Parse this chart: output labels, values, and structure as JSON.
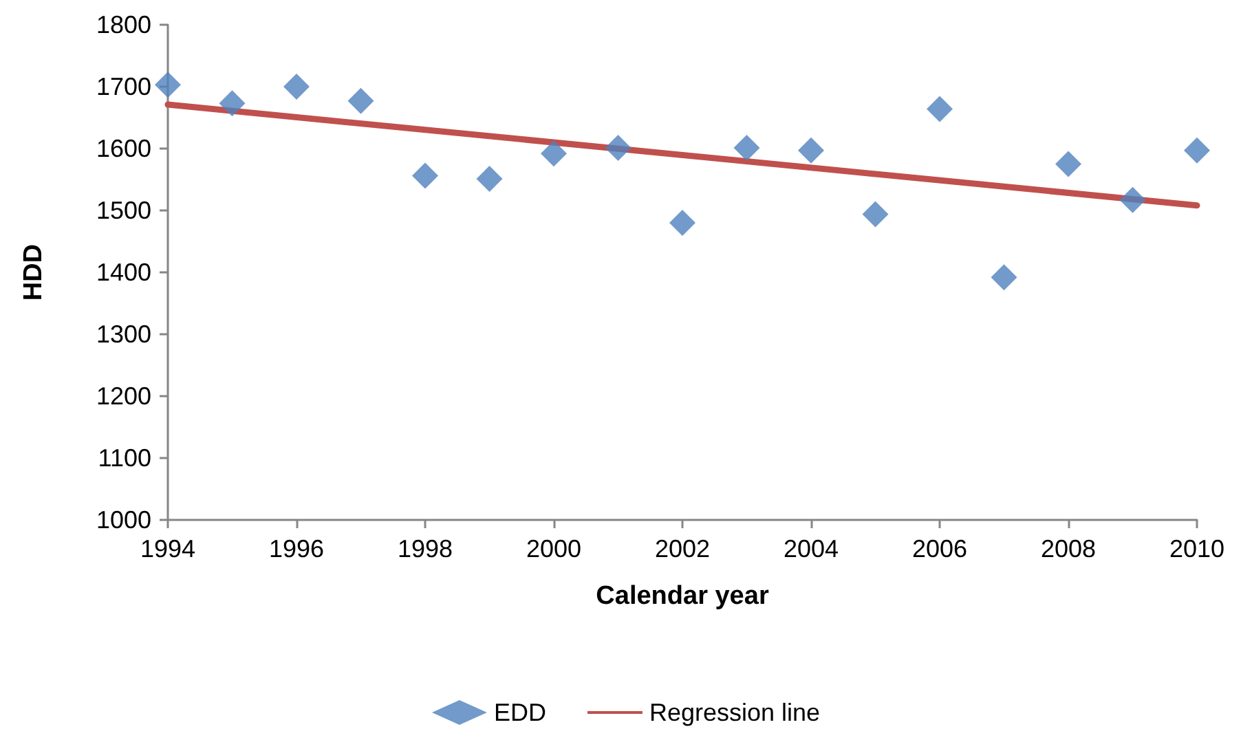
{
  "chart_data": {
    "type": "scatter",
    "xlabel": "Calendar year",
    "ylabel": "HDD",
    "x": [
      1994,
      1995,
      1996,
      1997,
      1998,
      1999,
      2000,
      2001,
      2002,
      2003,
      2004,
      2005,
      2006,
      2007,
      2008,
      2009,
      2010
    ],
    "series": [
      {
        "name": "EDD",
        "type": "scatter",
        "color": "#4f81bd",
        "marker": "diamond",
        "values": [
          1703,
          1673,
          1700,
          1677,
          1556,
          1551,
          1592,
          1601,
          1480,
          1601,
          1597,
          1494,
          1664,
          1392,
          1575,
          1517,
          1597
        ]
      },
      {
        "name": "Regression line",
        "type": "line",
        "color": "#c0504d",
        "marker": "none",
        "line_style": "solid",
        "x": [
          1994,
          2010
        ],
        "values": [
          1671,
          1508
        ]
      }
    ],
    "xlim": [
      1994,
      2010
    ],
    "xticks": [
      1994,
      1996,
      1998,
      2000,
      2002,
      2004,
      2006,
      2008,
      2010
    ],
    "ylim": [
      1000,
      1800
    ],
    "yticks": [
      1000,
      1100,
      1200,
      1300,
      1400,
      1500,
      1600,
      1700,
      1800
    ],
    "grid": false,
    "legend": "bottom"
  }
}
